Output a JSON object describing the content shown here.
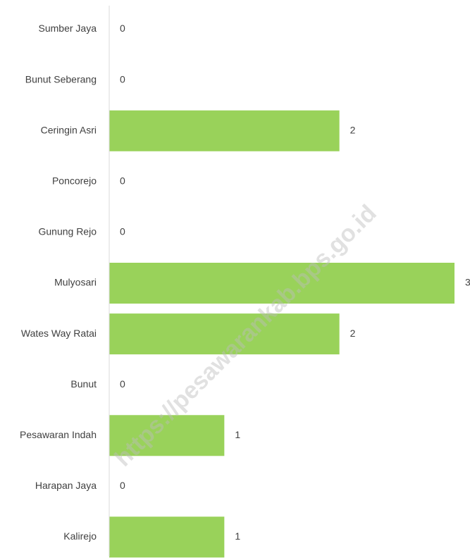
{
  "chart_data": {
    "type": "bar",
    "orientation": "horizontal",
    "categories": [
      "Sumber Jaya",
      "Bunut Seberang",
      "Ceringin Asri",
      "Poncorejo",
      "Gunung Rejo",
      "Mulyosari",
      "Wates Way Ratai",
      "Bunut",
      "Pesawaran Indah",
      "Harapan Jaya",
      "Kalirejo"
    ],
    "values": [
      0,
      0,
      2,
      0,
      0,
      3,
      2,
      0,
      1,
      0,
      1
    ],
    "color": "#99d25a",
    "xlim": [
      0,
      3
    ],
    "watermark": "https://pesawarankab.bps.go.id"
  }
}
